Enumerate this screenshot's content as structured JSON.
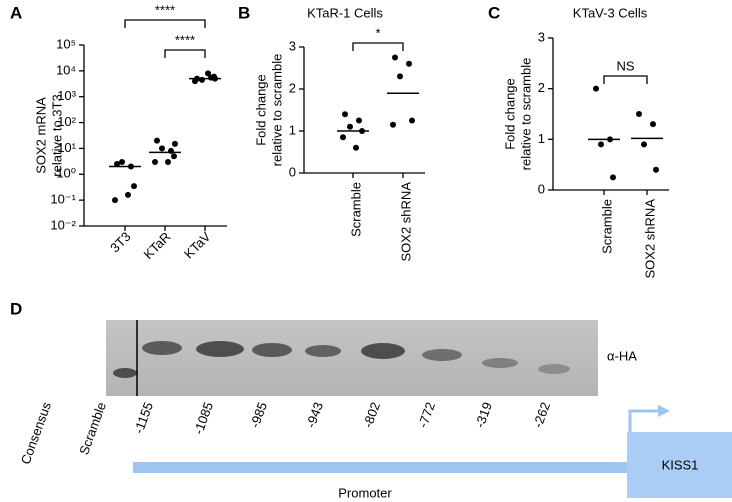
{
  "chart_data": [
    {
      "type": "strip",
      "panel": "A",
      "ylabel": [
        "SOX2 mRNA",
        "relative to 3T3"
      ],
      "categories": [
        "3T3",
        "KTaR",
        "KTaV"
      ],
      "points": [
        [
          2.5,
          2,
          3,
          0.35,
          0.1,
          0.16
        ],
        [
          20,
          8,
          10,
          5,
          3,
          3,
          15
        ],
        [
          5000,
          5500,
          4500,
          6000,
          4000,
          8000,
          5000
        ]
      ],
      "centers": [
        2,
        7,
        5000
      ],
      "log_scale": true,
      "ylim": [
        0.01,
        100000
      ],
      "yticks": [
        {
          "value": 100000,
          "label": "10⁵"
        },
        {
          "value": 10000,
          "label": "10⁴"
        },
        {
          "value": 1000,
          "label": "10³"
        },
        {
          "value": 100,
          "label": "10²"
        },
        {
          "value": 10,
          "label": "10¹"
        },
        {
          "value": 1,
          "label": "10⁰"
        },
        {
          "value": 0.1,
          "label": "10⁻¹"
        },
        {
          "value": 0.01,
          "label": "10⁻²"
        }
      ],
      "annotations": [
        "****",
        "****"
      ]
    },
    {
      "type": "strip",
      "panel": "B",
      "title": "KTaR-1 Cells",
      "ylabel": [
        "Fold change",
        "relative to scramble"
      ],
      "categories": [
        "Scramble",
        "SOX2 shRNA"
      ],
      "points": [
        [
          1.4,
          1.25,
          1.1,
          1.0,
          0.85,
          0.6
        ],
        [
          2.75,
          2.6,
          2.3,
          1.25,
          1.15
        ]
      ],
      "centers": [
        1.0,
        1.9
      ],
      "log_scale": false,
      "ylim": [
        0,
        3
      ],
      "yticks": [
        0,
        1,
        2,
        3
      ],
      "annotations": [
        "*"
      ]
    },
    {
      "type": "strip",
      "panel": "C",
      "title": "KTaV-3 Cells",
      "ylabel": [
        "Fold change",
        "relative to scramble"
      ],
      "categories": [
        "Scramble",
        "SOX2 shRNA"
      ],
      "points": [
        [
          2.0,
          1.0,
          0.9,
          0.25
        ],
        [
          1.5,
          1.3,
          0.9,
          0.4
        ]
      ],
      "centers": [
        1.0,
        1.02
      ],
      "log_scale": false,
      "ylim": [
        0,
        3
      ],
      "yticks": [
        0,
        1,
        2,
        3
      ],
      "annotations": [
        "NS"
      ]
    }
  ],
  "blot": {
    "panel": "D",
    "lanes": [
      "Consensus",
      "Scramble",
      "-1155",
      "-1085",
      "-985",
      "-943",
      "-802",
      "-772",
      "-319",
      "-262"
    ],
    "antibody": "α-HA",
    "gene": "KISS1",
    "region": "Promoter"
  }
}
